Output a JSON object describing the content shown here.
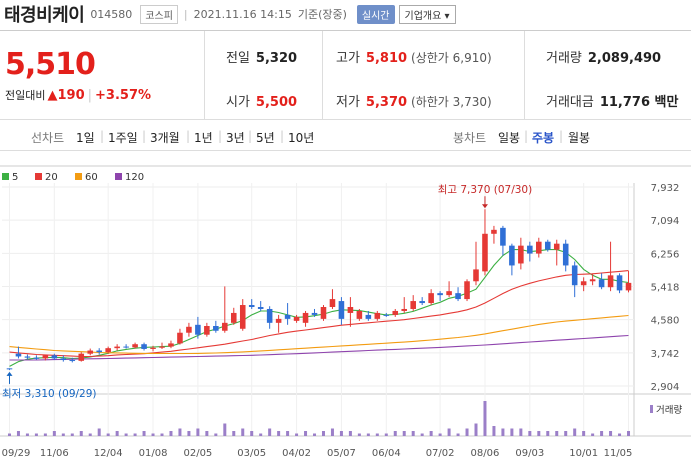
{
  "header": {
    "name": "태경비케이",
    "code": "014580",
    "market": "코스피",
    "datetime": "2021.11.16 14:15",
    "basis": "기준(장중)",
    "live": "실시간",
    "corp_button": "기업개요 ▾"
  },
  "price": {
    "current": "5,510",
    "change_label": "전일대비",
    "change": "▲190",
    "change_pct": "+3.57%"
  },
  "stats": {
    "prev_label": "전일",
    "prev": "5,320",
    "open_label": "시가",
    "open": "5,500",
    "high_label": "고가",
    "high": "5,810",
    "upper_limit": "(상한가 6,910)",
    "low_label": "저가",
    "low": "5,370",
    "lower_limit": "(하한가 3,730)",
    "volume_label": "거래량",
    "volume": "2,089,490",
    "amount_label": "거래대금",
    "amount": "11,776 백만"
  },
  "tabs": {
    "line_label": "선차트",
    "periods": [
      "1일",
      "1주일",
      "3개월",
      "1년",
      "3년",
      "5년",
      "10년"
    ],
    "candle_label": "봉차트",
    "candles": [
      "일봉",
      "주봉",
      "월봉"
    ],
    "selected_candle": "주봉"
  },
  "chart_data": {
    "type": "candlestick",
    "x_ticks": [
      "09/29",
      "11/06",
      "12/04",
      "01/08",
      "02/05",
      "03/05",
      "04/02",
      "05/07",
      "06/04",
      "07/02",
      "08/06",
      "09/03",
      "10/01",
      "11/05"
    ],
    "y_ticks": [
      2904,
      3742,
      4580,
      5418,
      6256,
      7094,
      7932
    ],
    "ylim": [
      2904,
      7932
    ],
    "legend": [
      {
        "name": "5",
        "color": "#3cb043"
      },
      {
        "name": "20",
        "color": "#e53935"
      },
      {
        "name": "60",
        "color": "#f39c12"
      },
      {
        "name": "120",
        "color": "#8e44ad"
      }
    ],
    "annotations": {
      "max": "최고 7,370 (07/30)",
      "min": "최저 3,310 (09/29)"
    },
    "volume_label": "거래량",
    "up_color": "#e53935",
    "down_color": "#2f6fd6",
    "candles": [
      {
        "o": 3350,
        "h": 3350,
        "l": 3310,
        "c": 3330
      },
      {
        "o": 3720,
        "h": 3900,
        "l": 3600,
        "c": 3650
      },
      {
        "o": 3650,
        "h": 3700,
        "l": 3580,
        "c": 3620
      },
      {
        "o": 3620,
        "h": 3680,
        "l": 3560,
        "c": 3590
      },
      {
        "o": 3600,
        "h": 3700,
        "l": 3550,
        "c": 3680
      },
      {
        "o": 3680,
        "h": 3720,
        "l": 3560,
        "c": 3600
      },
      {
        "o": 3600,
        "h": 3680,
        "l": 3520,
        "c": 3560
      },
      {
        "o": 3560,
        "h": 3620,
        "l": 3500,
        "c": 3540
      },
      {
        "o": 3540,
        "h": 3760,
        "l": 3520,
        "c": 3720
      },
      {
        "o": 3720,
        "h": 3850,
        "l": 3680,
        "c": 3800
      },
      {
        "o": 3800,
        "h": 3860,
        "l": 3700,
        "c": 3760
      },
      {
        "o": 3760,
        "h": 3900,
        "l": 3720,
        "c": 3860
      },
      {
        "o": 3860,
        "h": 3960,
        "l": 3800,
        "c": 3900
      },
      {
        "o": 3900,
        "h": 3960,
        "l": 3850,
        "c": 3880
      },
      {
        "o": 3880,
        "h": 4000,
        "l": 3850,
        "c": 3960
      },
      {
        "o": 3960,
        "h": 4000,
        "l": 3800,
        "c": 3840
      },
      {
        "o": 3840,
        "h": 3920,
        "l": 3780,
        "c": 3870
      },
      {
        "o": 3870,
        "h": 4000,
        "l": 3840,
        "c": 3900
      },
      {
        "o": 3900,
        "h": 4050,
        "l": 3860,
        "c": 3980
      },
      {
        "o": 3980,
        "h": 4350,
        "l": 3950,
        "c": 4250
      },
      {
        "o": 4250,
        "h": 4500,
        "l": 4150,
        "c": 4400
      },
      {
        "o": 4450,
        "h": 4650,
        "l": 4100,
        "c": 4200
      },
      {
        "o": 4200,
        "h": 4500,
        "l": 4150,
        "c": 4420
      },
      {
        "o": 4420,
        "h": 4550,
        "l": 4250,
        "c": 4300
      },
      {
        "o": 4300,
        "h": 5420,
        "l": 4250,
        "c": 4500
      },
      {
        "o": 4500,
        "h": 4880,
        "l": 4450,
        "c": 4750
      },
      {
        "o": 4350,
        "h": 5100,
        "l": 4300,
        "c": 4950
      },
      {
        "o": 4950,
        "h": 5100,
        "l": 4850,
        "c": 4900
      },
      {
        "o": 4900,
        "h": 5050,
        "l": 4800,
        "c": 4850
      },
      {
        "o": 4850,
        "h": 4920,
        "l": 4350,
        "c": 4500
      },
      {
        "o": 4500,
        "h": 4700,
        "l": 4250,
        "c": 4600
      },
      {
        "o": 4700,
        "h": 5000,
        "l": 4450,
        "c": 4600
      },
      {
        "o": 4550,
        "h": 4700,
        "l": 4500,
        "c": 4650
      },
      {
        "o": 4500,
        "h": 4800,
        "l": 4400,
        "c": 4750
      },
      {
        "o": 4750,
        "h": 4850,
        "l": 4650,
        "c": 4700
      },
      {
        "o": 4600,
        "h": 4950,
        "l": 4550,
        "c": 4900
      },
      {
        "o": 4900,
        "h": 5350,
        "l": 4850,
        "c": 5100
      },
      {
        "o": 5050,
        "h": 5150,
        "l": 4450,
        "c": 4600
      },
      {
        "o": 4750,
        "h": 5150,
        "l": 4400,
        "c": 4900
      },
      {
        "o": 4600,
        "h": 4850,
        "l": 4550,
        "c": 4800
      },
      {
        "o": 4700,
        "h": 4800,
        "l": 4550,
        "c": 4600
      },
      {
        "o": 4600,
        "h": 4800,
        "l": 4550,
        "c": 4750
      },
      {
        "o": 4700,
        "h": 4750,
        "l": 4650,
        "c": 4680
      },
      {
        "o": 4700,
        "h": 4850,
        "l": 4650,
        "c": 4800
      },
      {
        "o": 4800,
        "h": 5150,
        "l": 4750,
        "c": 4850
      },
      {
        "o": 4850,
        "h": 5200,
        "l": 4800,
        "c": 5050
      },
      {
        "o": 5050,
        "h": 5150,
        "l": 4950,
        "c": 5000
      },
      {
        "o": 5000,
        "h": 5350,
        "l": 4950,
        "c": 5250
      },
      {
        "o": 5250,
        "h": 5300,
        "l": 5050,
        "c": 5200
      },
      {
        "o": 5200,
        "h": 5550,
        "l": 5150,
        "c": 5300
      },
      {
        "o": 5250,
        "h": 5400,
        "l": 5050,
        "c": 5100
      },
      {
        "o": 5100,
        "h": 5600,
        "l": 5050,
        "c": 5550
      },
      {
        "o": 5550,
        "h": 6550,
        "l": 5450,
        "c": 5850
      },
      {
        "o": 5800,
        "h": 7370,
        "l": 5700,
        "c": 6750
      },
      {
        "o": 6750,
        "h": 6950,
        "l": 6500,
        "c": 6850
      },
      {
        "o": 6900,
        "h": 6950,
        "l": 6200,
        "c": 6450
      },
      {
        "o": 6450,
        "h": 6500,
        "l": 5700,
        "c": 5950
      },
      {
        "o": 6000,
        "h": 6650,
        "l": 5850,
        "c": 6450
      },
      {
        "o": 6450,
        "h": 6550,
        "l": 6050,
        "c": 6250
      },
      {
        "o": 6250,
        "h": 6650,
        "l": 6150,
        "c": 6550
      },
      {
        "o": 6550,
        "h": 6600,
        "l": 6300,
        "c": 6350
      },
      {
        "o": 6350,
        "h": 6600,
        "l": 5950,
        "c": 6500
      },
      {
        "o": 6500,
        "h": 6600,
        "l": 5800,
        "c": 5950
      },
      {
        "o": 5950,
        "h": 6050,
        "l": 5150,
        "c": 5450
      },
      {
        "o": 5450,
        "h": 5650,
        "l": 5300,
        "c": 5550
      },
      {
        "o": 5550,
        "h": 5750,
        "l": 5450,
        "c": 5600
      },
      {
        "o": 5600,
        "h": 5750,
        "l": 5350,
        "c": 5400
      },
      {
        "o": 5400,
        "h": 6550,
        "l": 5300,
        "c": 5700
      },
      {
        "o": 5700,
        "h": 5750,
        "l": 5250,
        "c": 5320
      },
      {
        "o": 5320,
        "h": 5810,
        "l": 5270,
        "c": 5510
      }
    ],
    "ma": {
      "5": [
        3400,
        3520,
        3580,
        3610,
        3620,
        3630,
        3620,
        3600,
        3610,
        3640,
        3680,
        3730,
        3790,
        3830,
        3860,
        3880,
        3890,
        3900,
        3910,
        3980,
        4080,
        4180,
        4280,
        4340,
        4420,
        4480,
        4560,
        4700,
        4800,
        4800,
        4760,
        4700,
        4640,
        4650,
        4680,
        4720,
        4790,
        4830,
        4820,
        4810,
        4770,
        4730,
        4700,
        4710,
        4740,
        4790,
        4870,
        4950,
        5020,
        5120,
        5170,
        5250,
        5350,
        5650,
        5950,
        6200,
        6350,
        6350,
        6300,
        6320,
        6350,
        6350,
        6280,
        6100,
        5850,
        5700,
        5600,
        5600,
        5550,
        5520
      ],
      "20": [
        3760,
        3740,
        3720,
        3700,
        3690,
        3680,
        3670,
        3660,
        3650,
        3650,
        3660,
        3670,
        3690,
        3700,
        3710,
        3720,
        3740,
        3760,
        3780,
        3810,
        3840,
        3870,
        3900,
        3930,
        3960,
        4000,
        4040,
        4080,
        4130,
        4180,
        4220,
        4260,
        4290,
        4320,
        4350,
        4380,
        4410,
        4440,
        4460,
        4480,
        4500,
        4520,
        4540,
        4560,
        4580,
        4610,
        4640,
        4670,
        4700,
        4740,
        4780,
        4830,
        4900,
        5000,
        5120,
        5240,
        5350,
        5430,
        5500,
        5560,
        5610,
        5660,
        5700,
        5720,
        5730,
        5740,
        5760,
        5780,
        5800,
        5820
      ],
      "60": [
        3900,
        3880,
        3860,
        3840,
        3820,
        3800,
        3790,
        3780,
        3770,
        3760,
        3750,
        3745,
        3740,
        3735,
        3730,
        3728,
        3726,
        3725,
        3724,
        3724,
        3725,
        3728,
        3732,
        3738,
        3745,
        3755,
        3766,
        3778,
        3790,
        3804,
        3818,
        3832,
        3846,
        3860,
        3874,
        3888,
        3902,
        3916,
        3930,
        3944,
        3958,
        3972,
        3986,
        4000,
        4014,
        4030,
        4048,
        4066,
        4086,
        4108,
        4130,
        4155,
        4185,
        4220,
        4260,
        4300,
        4340,
        4380,
        4420,
        4460,
        4490,
        4520,
        4545,
        4565,
        4585,
        4605,
        4625,
        4645,
        4665,
        4685
      ],
      "120": [
        3560,
        3560,
        3560,
        3560,
        3565,
        3570,
        3575,
        3580,
        3585,
        3590,
        3595,
        3600,
        3605,
        3610,
        3615,
        3620,
        3625,
        3630,
        3635,
        3640,
        3645,
        3650,
        3655,
        3660,
        3665,
        3670,
        3675,
        3680,
        3688,
        3696,
        3704,
        3712,
        3720,
        3730,
        3740,
        3750,
        3760,
        3770,
        3780,
        3790,
        3800,
        3810,
        3820,
        3830,
        3840,
        3850,
        3860,
        3870,
        3880,
        3892,
        3904,
        3916,
        3928,
        3940,
        3955,
        3970,
        3985,
        4000,
        4015,
        4030,
        4045,
        4060,
        4075,
        4090,
        4105,
        4120,
        4135,
        4150,
        4165,
        4180
      ]
    },
    "volume": [
      1,
      2,
      1,
      1,
      1,
      2,
      1,
      1,
      2,
      1,
      3,
      1,
      2,
      1,
      1,
      2,
      1,
      1,
      2,
      3,
      2,
      3,
      2,
      1,
      5,
      2,
      3,
      2,
      1,
      3,
      2,
      2,
      1,
      2,
      1,
      2,
      3,
      2,
      2,
      1,
      1,
      1,
      1,
      2,
      2,
      2,
      1,
      2,
      1,
      3,
      1,
      3,
      5,
      14,
      4,
      3,
      3,
      3,
      2,
      2,
      2,
      2,
      2,
      3,
      2,
      1,
      2,
      2,
      1,
      2
    ]
  }
}
